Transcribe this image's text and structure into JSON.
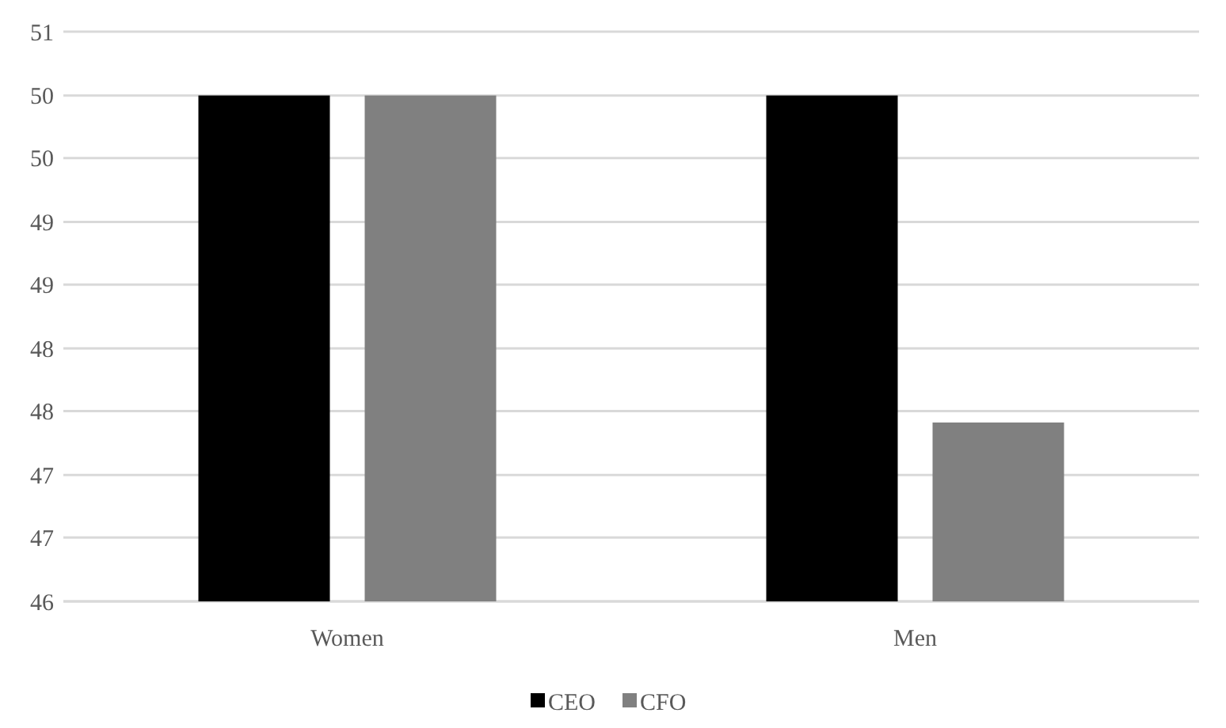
{
  "chart_data": {
    "type": "bar",
    "categories": [
      "Women",
      "Men"
    ],
    "series": [
      {
        "name": "CEO",
        "color": "#000000",
        "values": [
          50.44,
          50.44
        ]
      },
      {
        "name": "CFO",
        "color": "#808080",
        "values": [
          50.44,
          47.57
        ]
      }
    ],
    "ylim": [
      46,
      51
    ],
    "yticks": [
      46,
      {
        "value": 46.56,
        "label": "47"
      },
      {
        "value": 47.11,
        "label": "47"
      },
      {
        "value": 47.67,
        "label": "48"
      },
      {
        "value": 48.22,
        "label": "48"
      },
      {
        "value": 48.78,
        "label": "49"
      },
      {
        "value": 49.33,
        "label": "49"
      },
      {
        "value": 49.89,
        "label": "50"
      },
      {
        "value": 50.44,
        "label": "50"
      },
      51
    ],
    "grid": true,
    "legend": "bottom"
  }
}
